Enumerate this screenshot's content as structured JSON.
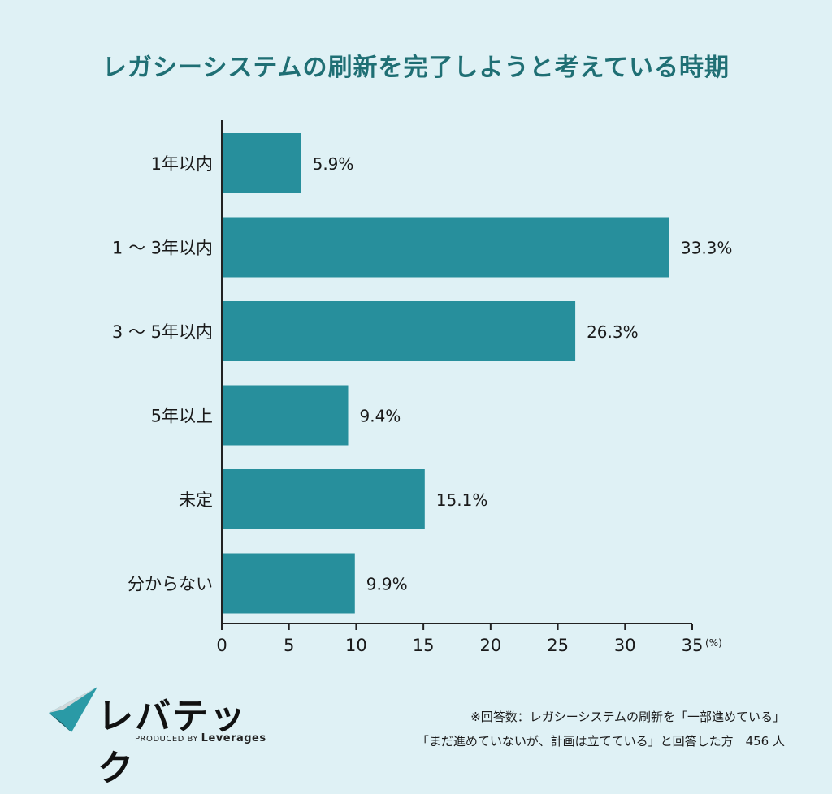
{
  "chart_data": {
    "type": "bar",
    "orientation": "horizontal",
    "title": "レガシーシステムの刷新を完了しようと考えている時期",
    "categories": [
      "1年以内",
      "1 ～ 3年以内",
      "3 ～ 5年以内",
      "5年以上",
      "未定",
      "分からない"
    ],
    "values": [
      5.9,
      33.3,
      26.3,
      9.4,
      15.1,
      9.9
    ],
    "value_labels": [
      "5.9%",
      "33.3%",
      "26.3%",
      "9.4%",
      "15.1%",
      "9.9%"
    ],
    "xlim": [
      0,
      35
    ],
    "xticks": [
      0,
      5,
      10,
      15,
      20,
      25,
      30,
      35
    ],
    "x_unit": "(%)",
    "bar_color": "#278f9c",
    "grid": false,
    "legend": "none"
  },
  "logo": {
    "name": "レバテック",
    "produced_by": "PRODUCED BY",
    "brand": "Leverages"
  },
  "footnote": {
    "line1": "※回答数：レガシーシステムの刷新を「一部進めている」",
    "line2": "「まだ進めていないが、計画は立てている」と回答した方　456 人"
  },
  "colors": {
    "background": "#dff1f5",
    "title": "#1f6f74",
    "bar": "#278f9c"
  }
}
